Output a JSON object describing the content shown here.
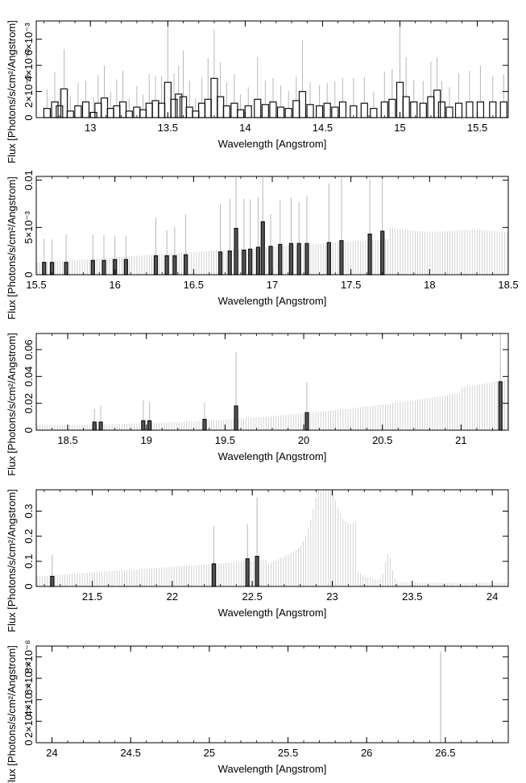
{
  "chart_data": [
    {
      "type": "bar",
      "title": "",
      "xlabel": "Wavelength [Angstrom]",
      "ylabel": "Flux [Photons/s/cm²/Angstrom]",
      "xlim": [
        12.65,
        15.7
      ],
      "ylim": [
        0,
        0.0074
      ],
      "x_ticks": [
        13,
        13.5,
        14,
        14.5,
        15,
        15.5
      ],
      "x_tick_labels": [
        "13",
        "13.5",
        "14",
        "14.5",
        "15",
        "15.5"
      ],
      "y_ticks": [
        0,
        0.002,
        0.004,
        0.006
      ],
      "y_tick_labels": [
        "0",
        "2×10⁻³",
        "4×10⁻³",
        "6×10⁻³"
      ],
      "series": [
        {
          "values": [
            [
              12.72,
              0.0007
            ],
            [
              12.77,
              0.0012
            ],
            [
              12.8,
              0.0009
            ],
            [
              12.83,
              0.0022
            ],
            [
              12.87,
              0.0005
            ],
            [
              12.92,
              0.0009
            ],
            [
              12.97,
              0.0012
            ],
            [
              13.02,
              0.0004
            ],
            [
              13.05,
              0.0011
            ],
            [
              13.09,
              0.0015
            ],
            [
              13.13,
              0.0007
            ],
            [
              13.17,
              0.0009
            ],
            [
              13.21,
              0.0012
            ],
            [
              13.25,
              0.0005
            ],
            [
              13.3,
              0.0008
            ],
            [
              13.34,
              0.0006
            ],
            [
              13.38,
              0.0011
            ],
            [
              13.42,
              0.0013
            ],
            [
              13.46,
              0.0011
            ],
            [
              13.5,
              0.0027
            ],
            [
              13.54,
              0.0014
            ],
            [
              13.57,
              0.0018
            ],
            [
              13.6,
              0.0016
            ],
            [
              13.64,
              0.0008
            ],
            [
              13.68,
              0.0005
            ],
            [
              13.72,
              0.0011
            ],
            [
              13.76,
              0.0014
            ],
            [
              13.8,
              0.003
            ],
            [
              13.84,
              0.0016
            ],
            [
              13.88,
              0.0009
            ],
            [
              13.93,
              0.0011
            ],
            [
              13.97,
              0.0006
            ],
            [
              14.02,
              0.0009
            ],
            [
              14.08,
              0.0014
            ],
            [
              14.13,
              0.001
            ],
            [
              14.18,
              0.0012
            ],
            [
              14.23,
              0.0008
            ],
            [
              14.28,
              0.0007
            ],
            [
              14.33,
              0.0013
            ],
            [
              14.37,
              0.002
            ],
            [
              14.42,
              0.001
            ],
            [
              14.48,
              0.0009
            ],
            [
              14.53,
              0.0011
            ],
            [
              14.58,
              0.0008
            ],
            [
              14.63,
              0.0012
            ],
            [
              14.7,
              0.0009
            ],
            [
              14.77,
              0.0011
            ],
            [
              14.83,
              0.0007
            ],
            [
              14.9,
              0.0012
            ],
            [
              14.95,
              0.0014
            ],
            [
              15.0,
              0.0027
            ],
            [
              15.04,
              0.0016
            ],
            [
              15.09,
              0.0012
            ],
            [
              15.15,
              0.0011
            ],
            [
              15.2,
              0.0016
            ],
            [
              15.24,
              0.0021
            ],
            [
              15.27,
              0.0012
            ],
            [
              15.32,
              0.0008
            ],
            [
              15.38,
              0.0011
            ],
            [
              15.45,
              0.0012
            ],
            [
              15.52,
              0.0012
            ],
            [
              15.6,
              0.0012
            ],
            [
              15.67,
              0.0012
            ]
          ]
        }
      ]
    },
    {
      "type": "bar",
      "title": "",
      "xlabel": "Wavelength [Angstrom]",
      "ylabel": "Flux [Photons/s/cm²/Angstrom]",
      "xlim": [
        15.5,
        18.5
      ],
      "ylim": [
        0,
        0.0104
      ],
      "x_ticks": [
        15.5,
        16,
        16.5,
        17,
        17.5,
        18,
        18.5
      ],
      "x_tick_labels": [
        "15.5",
        "16",
        "16.5",
        "17",
        "17.5",
        "18",
        "18.5"
      ],
      "y_ticks": [
        0,
        0.005,
        0.01
      ],
      "y_tick_labels": [
        "0",
        "5×10⁻³",
        "0.01"
      ],
      "series": [
        {
          "values": [
            [
              15.55,
              0.0013
            ],
            [
              15.6,
              0.0013
            ],
            [
              15.69,
              0.0013
            ],
            [
              15.86,
              0.0015
            ],
            [
              15.93,
              0.0015
            ],
            [
              16.0,
              0.0016
            ],
            [
              16.07,
              0.0016
            ],
            [
              16.26,
              0.002
            ],
            [
              16.33,
              0.002
            ],
            [
              16.38,
              0.002
            ],
            [
              16.45,
              0.0021
            ],
            [
              16.67,
              0.0024
            ],
            [
              16.73,
              0.0025
            ],
            [
              16.77,
              0.0049
            ],
            [
              16.82,
              0.0026
            ],
            [
              16.86,
              0.0027
            ],
            [
              16.91,
              0.0029
            ],
            [
              16.94,
              0.0056
            ],
            [
              16.99,
              0.003
            ],
            [
              17.05,
              0.0032
            ],
            [
              17.12,
              0.0033
            ],
            [
              17.17,
              0.0033
            ],
            [
              17.22,
              0.0033
            ],
            [
              17.36,
              0.0034
            ],
            [
              17.44,
              0.0036
            ],
            [
              17.62,
              0.0043
            ],
            [
              17.7,
              0.0046
            ]
          ]
        }
      ]
    },
    {
      "type": "bar",
      "title": "",
      "xlabel": "Wavelength [Angstrom]",
      "ylabel": "Flux [Photons/s/cm²/Angstrom]",
      "xlim": [
        18.3,
        21.3
      ],
      "ylim": [
        0,
        0.072
      ],
      "x_ticks": [
        18.5,
        19,
        19.5,
        20,
        20.5,
        21
      ],
      "x_tick_labels": [
        "18.5",
        "19",
        "19.5",
        "20",
        "20.5",
        "21"
      ],
      "y_ticks": [
        0,
        0.02,
        0.04,
        0.06
      ],
      "y_tick_labels": [
        "0",
        "0.02",
        "0.04",
        "0.06"
      ],
      "series": [
        {
          "values": [
            [
              18.67,
              0.006
            ],
            [
              18.71,
              0.006
            ],
            [
              18.98,
              0.007
            ],
            [
              19.02,
              0.007
            ],
            [
              19.37,
              0.008
            ],
            [
              19.57,
              0.018
            ],
            [
              20.02,
              0.013
            ],
            [
              21.25,
              0.036
            ]
          ]
        }
      ]
    },
    {
      "type": "bar",
      "title": "",
      "xlabel": "Wavelength [Angstrom]",
      "ylabel": "Flux [Photons/s/cm²/Angstrom]",
      "xlim": [
        21.15,
        24.1
      ],
      "ylim": [
        0,
        0.385
      ],
      "x_ticks": [
        21.5,
        22,
        22.5,
        23,
        23.5,
        24
      ],
      "x_tick_labels": [
        "21.5",
        "22",
        "22.5",
        "23",
        "23.5",
        "24"
      ],
      "y_ticks": [
        0,
        0.1,
        0.2,
        0.3
      ],
      "y_tick_labels": [
        "0",
        "0.1",
        "0.2",
        "0.3"
      ],
      "series": [
        {
          "values": [
            [
              21.25,
              0.04
            ],
            [
              22.26,
              0.09
            ],
            [
              22.47,
              0.11
            ],
            [
              22.53,
              0.12
            ]
          ]
        }
      ]
    },
    {
      "type": "bar",
      "title": "",
      "xlabel": "Wavelength [Angstrom]",
      "ylabel": "Flux [Photons/s/cm²/Angstrom]",
      "xlim": [
        23.9,
        26.9
      ],
      "ylim": [
        0,
        9e-08
      ],
      "x_ticks": [
        24,
        24.5,
        25,
        25.5,
        26,
        26.5
      ],
      "x_tick_labels": [
        "24",
        "24.5",
        "25",
        "25.5",
        "26",
        "26.5"
      ],
      "y_ticks": [
        0,
        2e-08,
        4e-08,
        6e-08,
        8e-08
      ],
      "y_tick_labels": [
        "0",
        "2×10⁻⁸",
        "4×10⁻⁸",
        "6×10⁻⁸",
        "8×10⁻⁸"
      ],
      "series": [
        {
          "values": []
        }
      ]
    }
  ]
}
